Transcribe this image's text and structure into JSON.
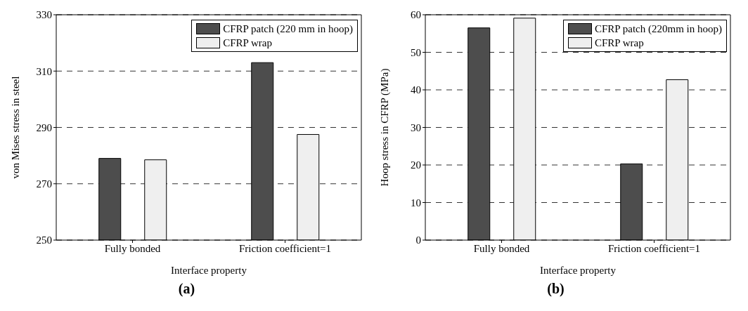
{
  "chart_data": [
    {
      "type": "bar",
      "title": "(a)",
      "xlabel": "Interface property",
      "ylabel": "von Mises stress in steel",
      "categories": [
        "Fully bonded",
        "Friction coefficient=1"
      ],
      "series": [
        {
          "name": "CFRP patch (220 mm in hoop)",
          "color": "#4d4d4d",
          "values": [
            279,
            313
          ]
        },
        {
          "name": "CFRP wrap",
          "color": "#efefef",
          "values": [
            278.5,
            287.5
          ]
        }
      ],
      "ylim": [
        250,
        330
      ],
      "yticks": [
        250,
        270,
        290,
        310,
        330
      ],
      "grid": "y",
      "legend": "top right"
    },
    {
      "type": "bar",
      "title": "(b)",
      "xlabel": "Interface property",
      "ylabel": "Hoop stress in CFRP (MPa)",
      "categories": [
        "Fully bonded",
        "Friction coefficient=1"
      ],
      "series": [
        {
          "name": "CFRP patch (220mm in hoop)",
          "color": "#4d4d4d",
          "values": [
            56.5,
            20.3
          ]
        },
        {
          "name": "CFRP wrap",
          "color": "#efefef",
          "values": [
            59.1,
            42.7
          ]
        }
      ],
      "ylim": [
        0,
        60
      ],
      "yticks": [
        0,
        10,
        20,
        30,
        40,
        50,
        60
      ],
      "grid": "y",
      "legend": "top right"
    }
  ]
}
